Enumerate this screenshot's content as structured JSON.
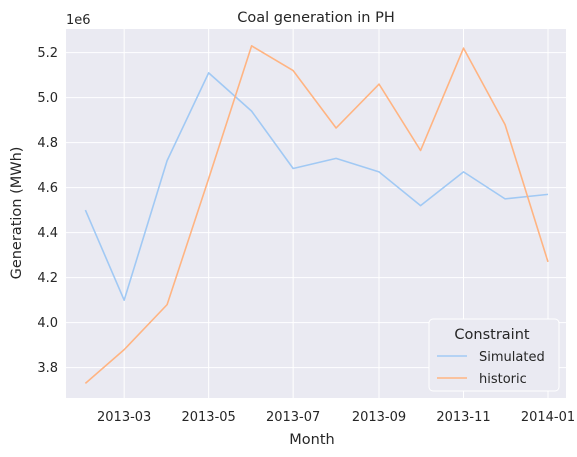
{
  "chart_data": {
    "type": "line",
    "title": "Coal generation in PH",
    "xlabel": "Month",
    "ylabel": "Generation (MWh)",
    "y_multiplier_label": "1e6",
    "x": [
      "2013-02-01",
      "2013-03-01",
      "2013-04-01",
      "2013-05-01",
      "2013-06-01",
      "2013-07-01",
      "2013-08-01",
      "2013-09-01",
      "2013-10-01",
      "2013-11-01",
      "2013-12-01",
      "2014-01-01"
    ],
    "x_ticks": [
      "2013-03",
      "2013-05",
      "2013-07",
      "2013-09",
      "2013-11",
      "2014-01"
    ],
    "y_ticks": [
      "3.8",
      "4.0",
      "4.2",
      "4.4",
      "4.6",
      "4.8",
      "5.0",
      "5.2"
    ],
    "ylim": [
      3.665,
      5.305
    ],
    "y_unit_scale": 1000000,
    "grid": true,
    "legend": {
      "title": "Constraint",
      "placement": "lower-right"
    },
    "series": [
      {
        "name": "Simulated",
        "color": "#a1c9f4",
        "values": [
          4.5,
          4.1,
          4.72,
          5.11,
          4.94,
          4.685,
          4.73,
          4.67,
          4.52,
          4.67,
          4.55,
          4.57
        ]
      },
      {
        "name": "historic",
        "color": "#ffb482",
        "values": [
          3.73,
          3.88,
          4.08,
          4.64,
          5.23,
          5.12,
          4.865,
          5.06,
          4.765,
          5.22,
          4.88,
          4.27
        ]
      }
    ]
  }
}
